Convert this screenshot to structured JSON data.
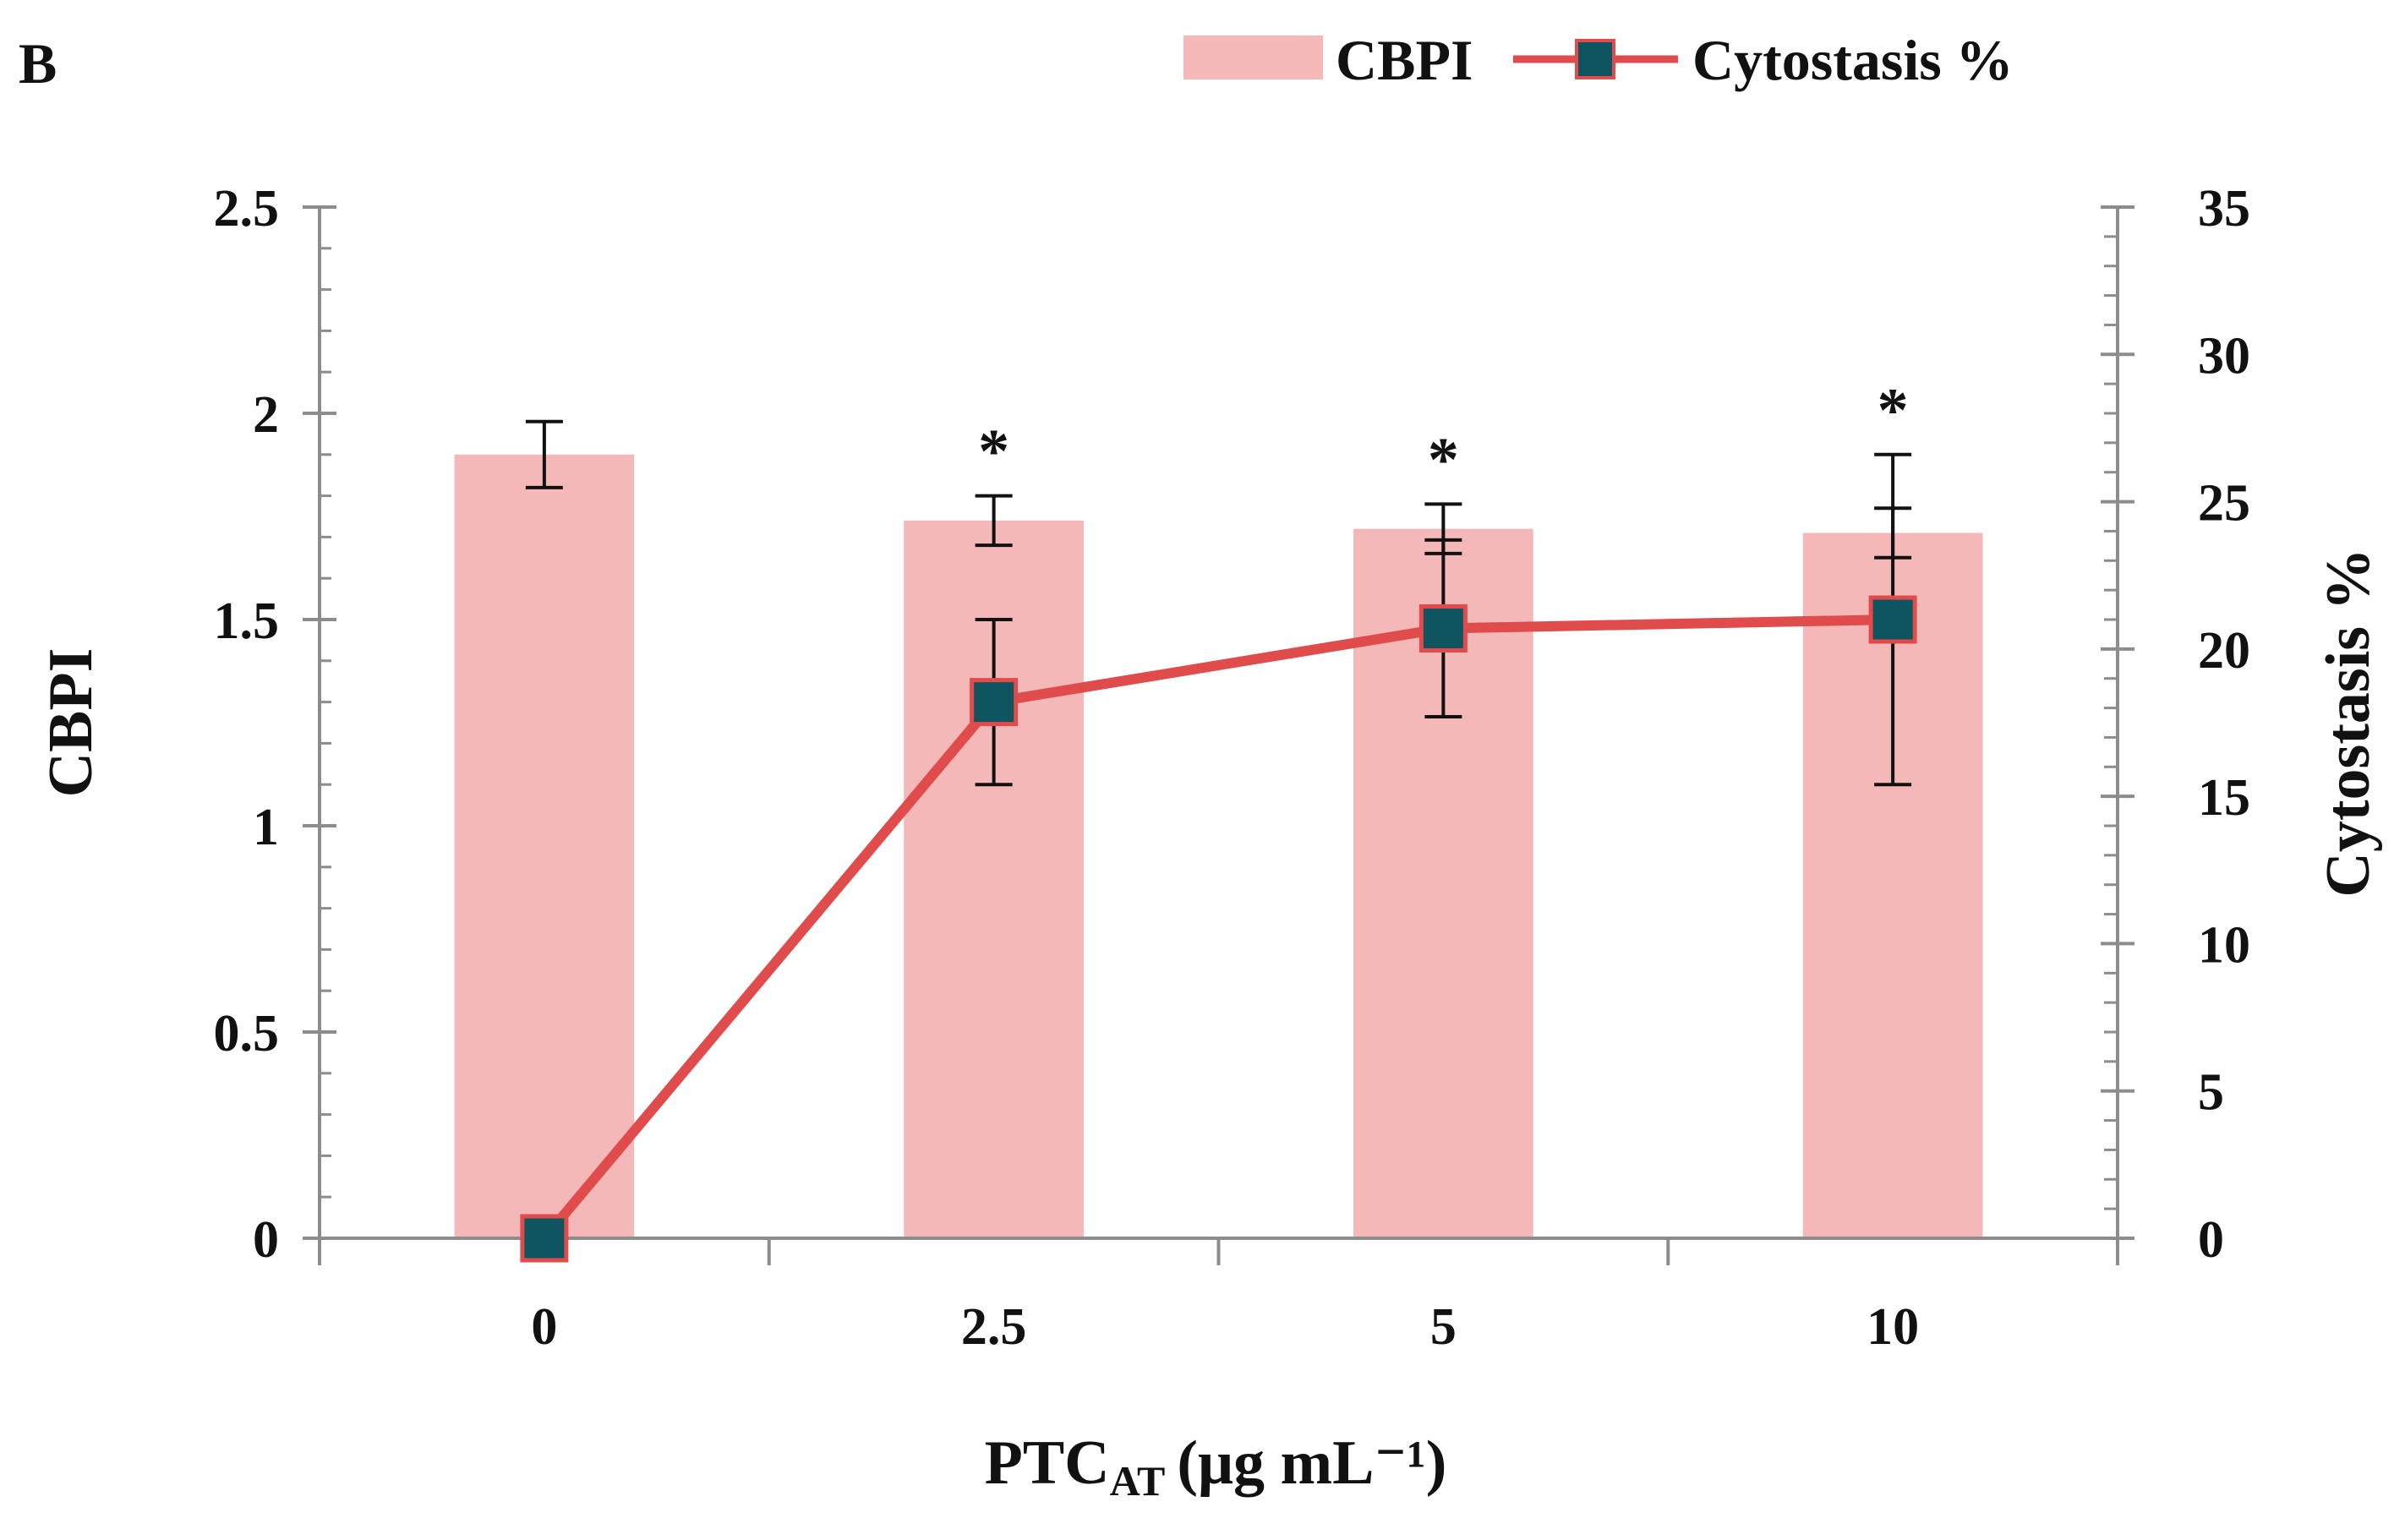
{
  "chart_data": {
    "type": "bar+line",
    "panel_label": "B",
    "categories": [
      "0",
      "2.5",
      "5",
      "10"
    ],
    "xlabel": {
      "main": "PTC",
      "subscript": "AT",
      "unit": "(μg mL⁻¹)"
    },
    "series": [
      {
        "name": "CBPI",
        "type": "bar",
        "axis": "left",
        "values": [
          1.9,
          1.74,
          1.72,
          1.71
        ],
        "error": [
          0.08,
          0.06,
          0.06,
          0.06
        ],
        "color": "#f4b8b8"
      },
      {
        "name": "Cytostasis %",
        "type": "line",
        "axis": "right",
        "values": [
          0,
          18.2,
          20.7,
          21.0
        ],
        "error": [
          0,
          2.8,
          3.0,
          5.6
        ],
        "line_color": "#e04b4b",
        "marker_color": "#0f5560"
      }
    ],
    "y_left": {
      "label": "CBPI",
      "ylim": [
        0,
        2.5
      ],
      "ticks": [
        "0",
        "0.5",
        "1",
        "1.5",
        "2",
        "2.5"
      ]
    },
    "y_right": {
      "label": "Cytostasis %",
      "ylim": [
        0,
        35
      ],
      "ticks": [
        "0",
        "5",
        "10",
        "15",
        "20",
        "25",
        "30",
        "35"
      ]
    },
    "significance": [
      "",
      "*",
      "*",
      "*"
    ],
    "legend": {
      "placement": "top-right",
      "entries": [
        "CBPI",
        "Cytostasis %"
      ]
    },
    "grid": false
  }
}
